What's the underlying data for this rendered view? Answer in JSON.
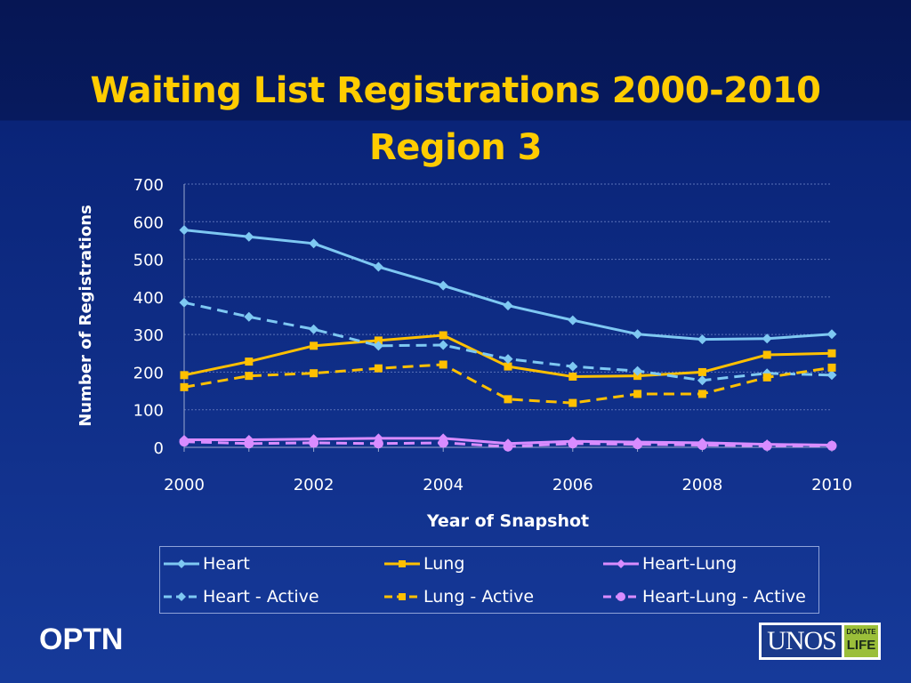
{
  "slide": {
    "title_line1": "Waiting List Registrations 2000-2010",
    "title_line2": "Region 3",
    "footer_left": "OPTN",
    "logo_main": "UNOS",
    "logo_badge_top": "DONATE",
    "logo_badge_bottom": "LIFE"
  },
  "colors": {
    "background": "#0b2170",
    "title": "#ffcc00",
    "heart": "#7ec8f2",
    "lung": "#ffc000",
    "heart_lung": "#d98cff",
    "text": "#ffffff"
  },
  "chart_data": {
    "type": "line",
    "title": "",
    "xlabel": "Year of Snapshot",
    "ylabel": "Number of Registrations",
    "x": [
      2000,
      2001,
      2002,
      2003,
      2004,
      2005,
      2006,
      2007,
      2008,
      2009,
      2010
    ],
    "xticks": [
      2000,
      2002,
      2004,
      2006,
      2008,
      2010
    ],
    "xlim": [
      2000,
      2010
    ],
    "ylim": [
      0,
      700
    ],
    "yticks": [
      0,
      100,
      200,
      300,
      400,
      500,
      600,
      700
    ],
    "grid": "horizontal dashed",
    "legend": "bottom",
    "series": [
      {
        "name": "Heart",
        "color": "#7ec8f2",
        "dash": "solid",
        "marker": "diamond",
        "values": [
          578,
          560,
          542,
          480,
          430,
          377,
          338,
          301,
          287,
          289,
          301
        ]
      },
      {
        "name": "Lung",
        "color": "#ffc000",
        "dash": "solid",
        "marker": "square",
        "values": [
          192,
          228,
          270,
          284,
          298,
          215,
          188,
          190,
          200,
          246,
          250
        ]
      },
      {
        "name": "Heart-Lung",
        "color": "#d98cff",
        "dash": "solid",
        "marker": "diamond",
        "values": [
          20,
          20,
          22,
          24,
          24,
          10,
          16,
          14,
          12,
          8,
          6
        ]
      },
      {
        "name": "Heart - Active",
        "color": "#7ec8f2",
        "dash": "dashed",
        "marker": "diamond",
        "values": [
          385,
          347,
          314,
          270,
          272,
          235,
          215,
          203,
          178,
          197,
          192
        ]
      },
      {
        "name": "Lung - Active",
        "color": "#ffc000",
        "dash": "dashed",
        "marker": "square",
        "values": [
          160,
          190,
          197,
          210,
          220,
          128,
          118,
          142,
          142,
          186,
          212
        ]
      },
      {
        "name": "Heart-Lung - Active",
        "color": "#d98cff",
        "dash": "dashed",
        "marker": "circle",
        "values": [
          15,
          10,
          12,
          10,
          12,
          2,
          10,
          8,
          6,
          4,
          4
        ]
      }
    ]
  }
}
